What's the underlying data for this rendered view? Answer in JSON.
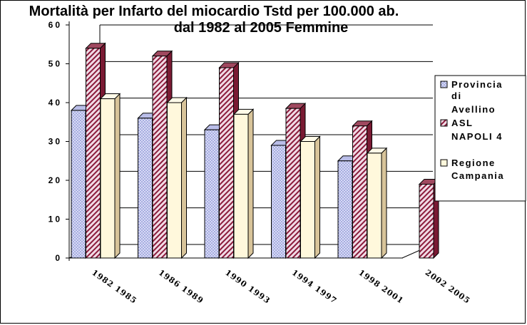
{
  "chart_data": {
    "type": "bar",
    "title": "Mortalità per Infarto del miocardio Tstd per 100.000 ab.",
    "subtitle": "dal 1982 al 2005 Femmine",
    "categories": [
      "1982 1985",
      "1986 1989",
      "1990 1993",
      "1994 1997",
      "1998 2001",
      "2002 2005"
    ],
    "series": [
      {
        "name": "Provincia di Avellino",
        "values": [
          38,
          36,
          33,
          29,
          25,
          null
        ],
        "color": "#c8cdf0"
      },
      {
        "name": "ASL NAPOLI 4",
        "values": [
          54,
          52,
          49,
          38.5,
          34,
          19
        ],
        "color": "#e6c8d8"
      },
      {
        "name": "Regione Campania",
        "values": [
          41,
          40,
          37,
          30,
          27,
          null
        ],
        "color": "#fff6d8"
      }
    ],
    "ylim": [
      0,
      60
    ],
    "yticks": [
      "0",
      "10",
      "20",
      "30",
      "40",
      "50",
      "60"
    ],
    "grid": true,
    "legend_position": "right",
    "legend_lines": [
      [
        "Provincia",
        "di",
        "Avellino"
      ],
      [
        "ASL",
        "NAPOLI 4"
      ],
      [
        "Regione",
        "Campania"
      ]
    ]
  }
}
